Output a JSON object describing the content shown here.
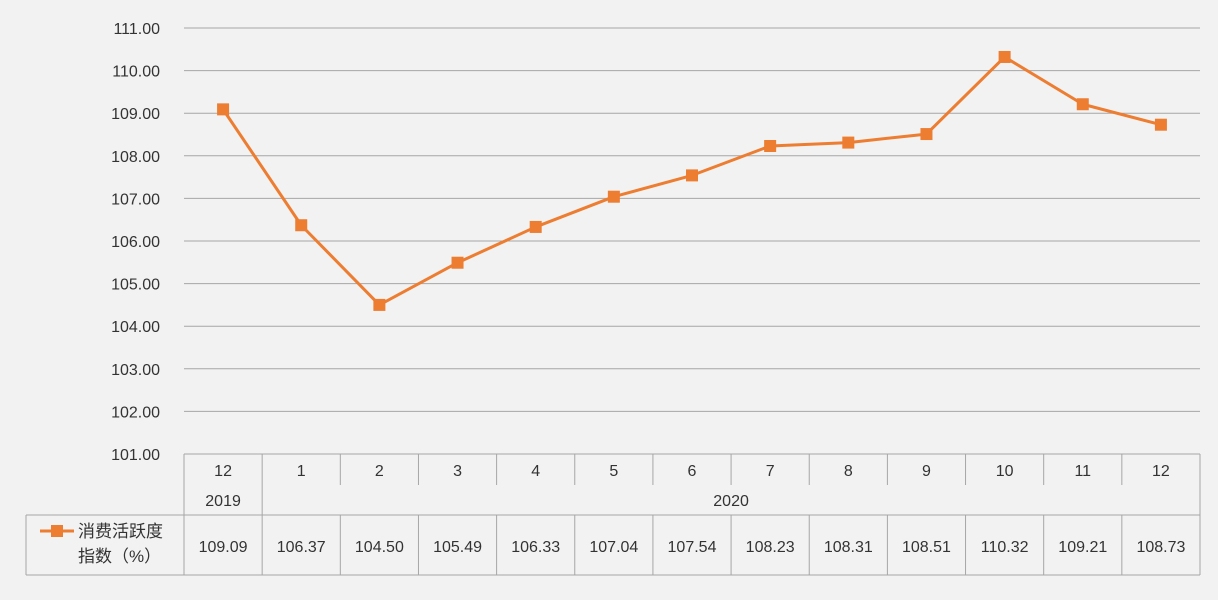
{
  "chart_data": {
    "type": "line",
    "ylim": [
      101,
      111
    ],
    "ytick_step": 1,
    "ytick_decimals": 2,
    "categories": [
      "12",
      "1",
      "2",
      "3",
      "4",
      "5",
      "6",
      "7",
      "8",
      "9",
      "10",
      "11",
      "12"
    ],
    "year_groups": [
      {
        "label": "2019",
        "span": 1
      },
      {
        "label": "2020",
        "span": 12
      }
    ],
    "series": [
      {
        "name": "消费活跃度指数（%）",
        "name_lines": [
          "消费活跃度",
          "指数（%）"
        ],
        "values": [
          109.09,
          106.37,
          104.5,
          105.49,
          106.33,
          107.04,
          107.54,
          108.23,
          108.31,
          108.51,
          110.32,
          109.21,
          108.73
        ],
        "value_labels": [
          "109.09",
          "106.37",
          "104.50",
          "105.49",
          "106.33",
          "107.04",
          "107.54",
          "108.23",
          "108.31",
          "108.51",
          "110.32",
          "109.21",
          "108.73"
        ],
        "color": "#ed7d31",
        "marker": "square"
      }
    ],
    "grid": true,
    "legend_placement": "data-table-left"
  }
}
